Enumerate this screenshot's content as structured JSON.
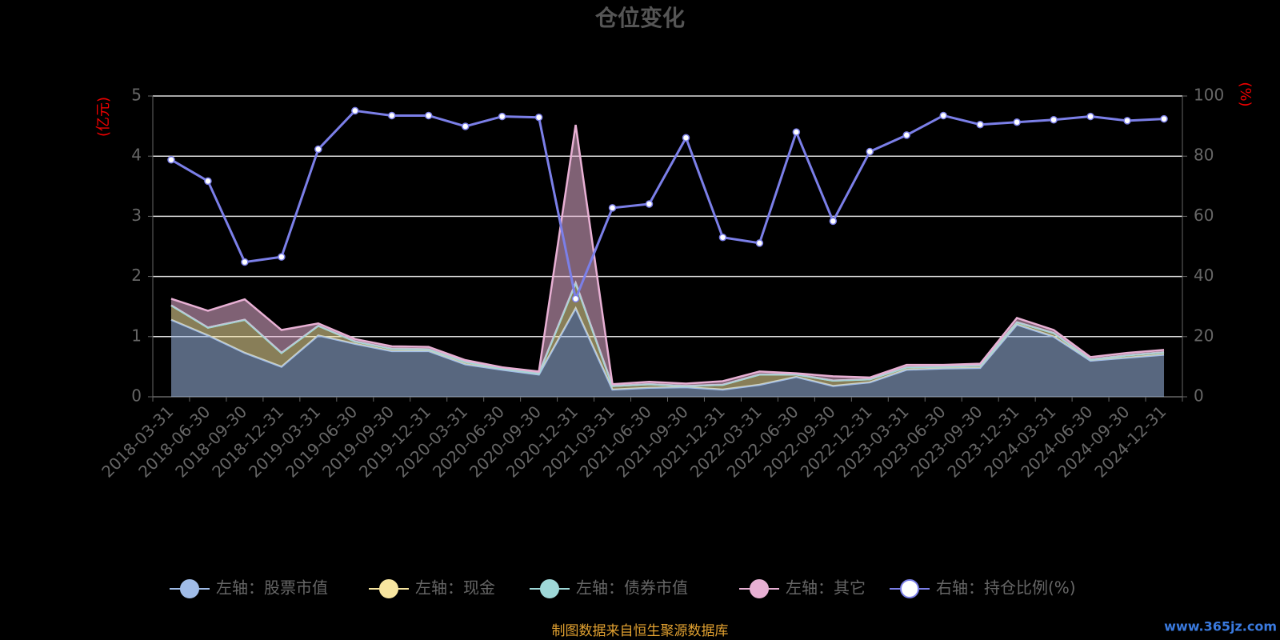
{
  "chart_data": {
    "type": "stacked-area-line",
    "title": "仓位变化",
    "y_label": "(亿元)",
    "y2_label": "(%)",
    "source": "制图数据来自恒生聚源数据库",
    "watermark": "www.365jz.com",
    "categories": [
      "2018-03-31",
      "2018-06-30",
      "2018-09-30",
      "2018-12-31",
      "2019-03-31",
      "2019-06-30",
      "2019-09-30",
      "2019-12-31",
      "2020-03-31",
      "2020-06-30",
      "2020-09-30",
      "2020-12-31",
      "2021-03-31",
      "2021-06-30",
      "2021-09-30",
      "2021-12-31",
      "2022-03-31",
      "2022-06-30",
      "2022-09-30",
      "2022-12-31",
      "2023-03-31",
      "2023-06-30",
      "2023-09-30",
      "2023-12-31",
      "2024-03-31",
      "2024-06-30",
      "2024-09-30",
      "2024-12-31"
    ],
    "series": [
      {
        "name": "左轴：股票市值",
        "color": "#a0bce8",
        "values": [
          1.28,
          1.02,
          0.73,
          0.5,
          1.02,
          0.88,
          0.76,
          0.76,
          0.54,
          0.45,
          0.37,
          1.47,
          0.12,
          0.15,
          0.16,
          0.12,
          0.2,
          0.33,
          0.18,
          0.24,
          0.45,
          0.47,
          0.48,
          1.2,
          1.0,
          0.6,
          0.65,
          0.7
        ]
      },
      {
        "name": "左轴：现金",
        "color": "#f8e6a0",
        "values": [
          0.24,
          0.13,
          0.55,
          0.23,
          0.16,
          0.04,
          0.04,
          0.03,
          0.04,
          0.02,
          0.02,
          0.42,
          0.06,
          0.06,
          0.02,
          0.08,
          0.17,
          0.04,
          0.09,
          0.05,
          0.04,
          0.03,
          0.04,
          0.04,
          0.06,
          0.02,
          0.04,
          0.04
        ]
      },
      {
        "name": "左轴：债券市值",
        "color": "#9ed8d8",
        "values": [
          0,
          0,
          0,
          0,
          0,
          0,
          0,
          0,
          0,
          0,
          0,
          0,
          0,
          0,
          0,
          0,
          0,
          0,
          0,
          0,
          0,
          0,
          0,
          0,
          0,
          0,
          0,
          0
        ]
      },
      {
        "name": "左轴：其它",
        "color": "#e8b0d4",
        "values": [
          0.11,
          0.28,
          0.34,
          0.38,
          0.04,
          0.04,
          0.04,
          0.04,
          0.03,
          0.02,
          0.03,
          2.63,
          0.03,
          0.04,
          0.04,
          0.06,
          0.05,
          0.02,
          0.07,
          0.03,
          0.04,
          0.03,
          0.03,
          0.07,
          0.05,
          0.04,
          0.04,
          0.04
        ]
      },
      {
        "name": "右轴：持仓比例(%)",
        "color": "#7b7fe8",
        "axis": "y2",
        "values": [
          78.8,
          71.7,
          44.8,
          46.5,
          82.3,
          95.1,
          93.5,
          93.5,
          89.9,
          93.2,
          92.9,
          32.6,
          62.8,
          64.1,
          86.1,
          53.0,
          51.1,
          88.0,
          58.4,
          81.5,
          87.0,
          93.5,
          90.5,
          91.3,
          92.1,
          93.2,
          91.8,
          92.4
        ]
      }
    ],
    "ylim": [
      0,
      5
    ],
    "yticks": [
      0,
      1,
      2,
      3,
      4,
      5
    ],
    "y2lim": [
      0,
      100
    ],
    "y2ticks": [
      0,
      20,
      40,
      60,
      80,
      100
    ],
    "grid": true,
    "legend": "bottom"
  }
}
